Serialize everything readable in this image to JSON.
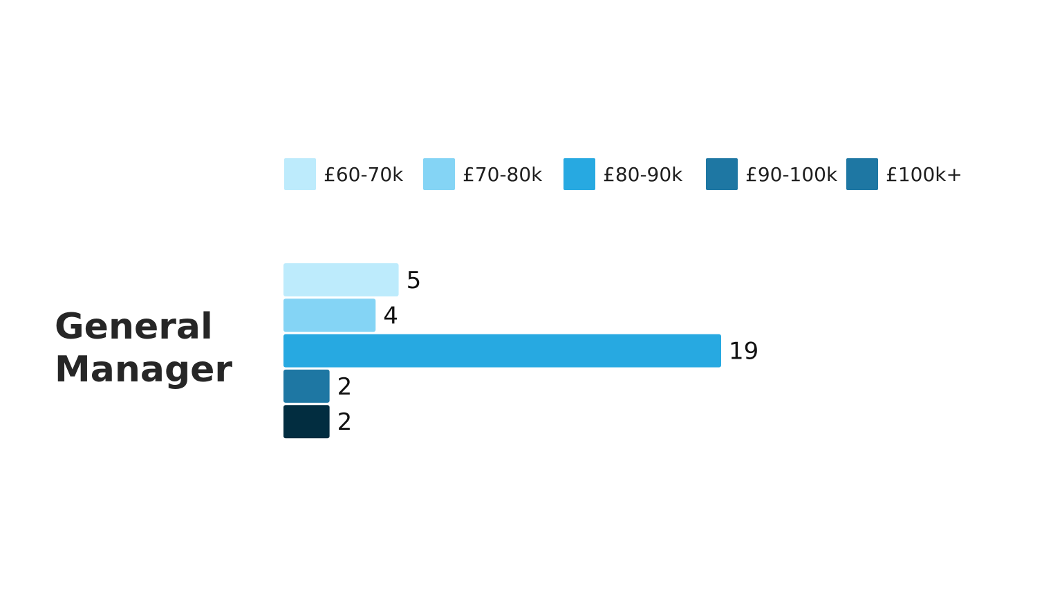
{
  "chart_data": {
    "type": "bar",
    "orientation": "horizontal",
    "title": "",
    "xlabel": "",
    "ylabel": "",
    "categories": [
      "General Manager"
    ],
    "category_label_lines": [
      "General",
      "Manager"
    ],
    "series": [
      {
        "name": "£60-70k",
        "values": [
          5
        ],
        "color": "#BDEBFC"
      },
      {
        "name": "£70-80k",
        "values": [
          4
        ],
        "color": "#84D4F5"
      },
      {
        "name": "£80-90k",
        "values": [
          19
        ],
        "color": "#27A9E1"
      },
      {
        "name": "£90-100k",
        "values": [
          2
        ],
        "color": "#1E77A3"
      },
      {
        "name": "£100k+",
        "values": [
          2
        ],
        "color": "#022D40"
      }
    ],
    "legend_colors": [
      "#BDEBFC",
      "#84D4F5",
      "#27A9E1",
      "#1E77A3",
      "#1E77A3"
    ],
    "xlim": [
      0,
      19
    ],
    "grid": false,
    "legend_position": "top",
    "data_labels": true
  }
}
